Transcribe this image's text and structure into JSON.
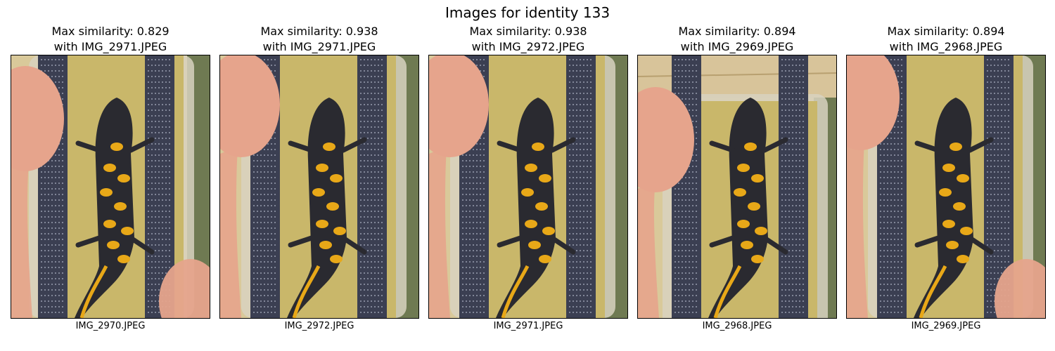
{
  "figure": {
    "title": "Images for identity 133"
  },
  "panels": [
    {
      "title_line1": "Max similarity: 0.829",
      "title_line2": "with IMG_2971.JPEG",
      "filename": "IMG_2970.JPEG",
      "image": "newt-in-tray-photo"
    },
    {
      "title_line1": "Max similarity: 0.938",
      "title_line2": "with IMG_2971.JPEG",
      "filename": "IMG_2972.JPEG",
      "image": "newt-in-tray-photo"
    },
    {
      "title_line1": "Max similarity: 0.938",
      "title_line2": "with IMG_2972.JPEG",
      "filename": "IMG_2971.JPEG",
      "image": "newt-in-tray-photo"
    },
    {
      "title_line1": "Max similarity: 0.894",
      "title_line2": "with IMG_2969.JPEG",
      "filename": "IMG_2968.JPEG",
      "image": "newt-in-tray-photo"
    },
    {
      "title_line1": "Max similarity: 0.894",
      "title_line2": "with IMG_2968.JPEG",
      "filename": "IMG_2969.JPEG",
      "image": "newt-in-tray-photo"
    }
  ],
  "colors": {
    "sand": "#c9b76a",
    "rail": "#3b3f52",
    "newt_body": "#2a2a30",
    "newt_belly": "#e8a818",
    "skin": "#e6a48c",
    "tray_edge": "#d8d2c0"
  }
}
